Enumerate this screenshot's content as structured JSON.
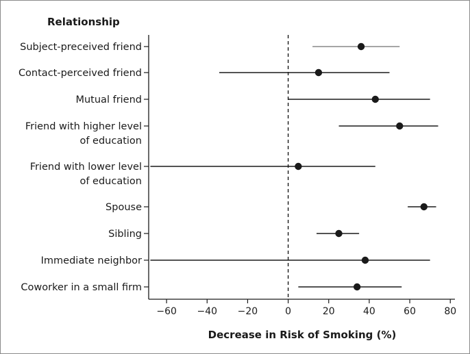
{
  "chart_data": {
    "type": "forest",
    "group_title": "Relationship",
    "xlabel": "Decrease in Risk of Smoking (%)",
    "xlim": [
      -70,
      83
    ],
    "xticks": [
      -60,
      -40,
      -20,
      0,
      20,
      40,
      60,
      80
    ],
    "xtick_labels": [
      "−60",
      "−40",
      "−20",
      "0",
      "20",
      "40",
      "60",
      "80"
    ],
    "reference_line": {
      "x": 0,
      "style": "dashed"
    },
    "rows": [
      {
        "label": [
          "Subject-preceived friend"
        ],
        "estimate": 36,
        "ci": [
          12,
          55
        ],
        "line_color": "#888888"
      },
      {
        "label": [
          "Contact-perceived friend"
        ],
        "estimate": 15,
        "ci": [
          -34,
          50
        ],
        "line_color": "#1a1a1a"
      },
      {
        "label": [
          "Mutual friend"
        ],
        "estimate": 43,
        "ci": [
          0,
          70
        ],
        "line_color": "#1a1a1a"
      },
      {
        "label": [
          "Friend with higher level",
          "of education"
        ],
        "estimate": 55,
        "ci": [
          25,
          74
        ],
        "line_color": "#1a1a1a"
      },
      {
        "label": [
          "Friend with lower level",
          "of education"
        ],
        "estimate": 5,
        "ci": [
          -68,
          43
        ],
        "line_color": "#1a1a1a"
      },
      {
        "label": [
          "Spouse"
        ],
        "estimate": 67,
        "ci": [
          59,
          73
        ],
        "line_color": "#1a1a1a"
      },
      {
        "label": [
          "Sibling"
        ],
        "estimate": 25,
        "ci": [
          14,
          35
        ],
        "line_color": "#1a1a1a"
      },
      {
        "label": [
          "Immediate neighbor"
        ],
        "estimate": 38,
        "ci": [
          -68,
          70
        ],
        "line_color": "#1a1a1a"
      },
      {
        "label": [
          "Coworker in a small firm"
        ],
        "estimate": 34,
        "ci": [
          5,
          56
        ],
        "line_color": "#1a1a1a"
      }
    ]
  }
}
